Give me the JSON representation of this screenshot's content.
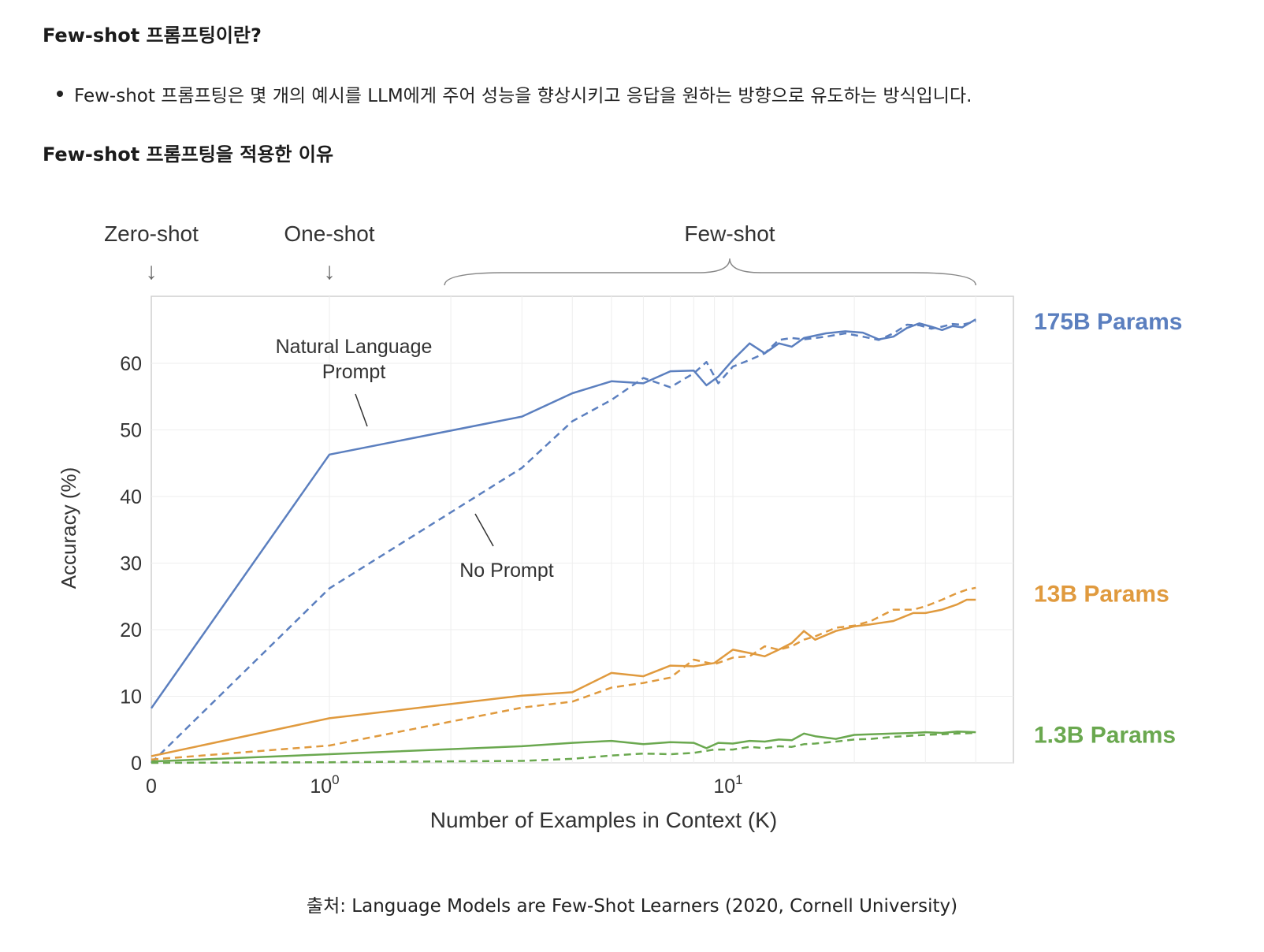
{
  "headings": {
    "what_is": "Few-shot 프롬프팅이란?",
    "why_applied": "Few-shot 프롬프팅을 적용한 이유"
  },
  "bullets": [
    "Few-shot 프롬프팅은 몇 개의 예시를 LLM에게 주어 성능을 향상시키고 응답을 원하는 방향으로 유도하는 방식입니다."
  ],
  "caption": "출처: Language Models are Few-Shot Learners (2020, Cornell University)",
  "chart_data": {
    "type": "line",
    "xlabel": "Number of Examples in Context  (K)",
    "ylabel": "Accuracy (%)",
    "x_scale": "symlog",
    "xlim": [
      0,
      40
    ],
    "ylim": [
      0,
      70
    ],
    "y_ticks": [
      0,
      10,
      20,
      30,
      40,
      50,
      60
    ],
    "x_ticks": [
      {
        "value": 0,
        "label": "0",
        "sup": ""
      },
      {
        "value": 1,
        "label": "10",
        "sup": "0"
      },
      {
        "value": 10,
        "label": "10",
        "sup": "1"
      }
    ],
    "grid": true,
    "regions": [
      {
        "label": "Zero-shot",
        "value": 0
      },
      {
        "label": "One-shot",
        "value": 1
      },
      {
        "label": "Few-shot",
        "range": [
          2,
          40
        ]
      }
    ],
    "annotations": [
      {
        "text_lines": [
          "Natural Language",
          "Prompt"
        ],
        "target_series": "175B-natural"
      },
      {
        "text_lines": [
          "No Prompt"
        ],
        "target_series": "175B-noprompt"
      }
    ],
    "series": [
      {
        "model": "175B Params",
        "prompt": "natural",
        "style": "solid",
        "color": "#5b7fbf",
        "points": [
          [
            0,
            8.2
          ],
          [
            1,
            46.3
          ],
          [
            3,
            52
          ],
          [
            4,
            55.5
          ],
          [
            5,
            57.3
          ],
          [
            6,
            57
          ],
          [
            7,
            58.8
          ],
          [
            8,
            58.9
          ],
          [
            8.6,
            56.7
          ],
          [
            9.2,
            58
          ],
          [
            10,
            60.5
          ],
          [
            11,
            63
          ],
          [
            12,
            61.5
          ],
          [
            13,
            63
          ],
          [
            14,
            62.5
          ],
          [
            15,
            63.8
          ],
          [
            17,
            64.5
          ],
          [
            19,
            64.8
          ],
          [
            21,
            64.6
          ],
          [
            23,
            63.6
          ],
          [
            25,
            64
          ],
          [
            27,
            65.3
          ],
          [
            29,
            66
          ],
          [
            31,
            65.5
          ],
          [
            33,
            65
          ],
          [
            35,
            65.6
          ],
          [
            37,
            65.4
          ],
          [
            40,
            66.6
          ]
        ]
      },
      {
        "model": "175B Params",
        "prompt": "none",
        "style": "dashed",
        "color": "#5b7fbf",
        "points": [
          [
            0,
            0
          ],
          [
            1,
            26.2
          ],
          [
            3,
            44.3
          ],
          [
            4,
            51.3
          ],
          [
            5,
            54.5
          ],
          [
            6,
            57.8
          ],
          [
            7,
            56.4
          ],
          [
            8,
            58.5
          ],
          [
            8.6,
            60.2
          ],
          [
            9.2,
            57
          ],
          [
            10,
            59.5
          ],
          [
            11,
            60.5
          ],
          [
            12,
            61.5
          ],
          [
            13,
            63.5
          ],
          [
            14,
            63.8
          ],
          [
            15,
            63.6
          ],
          [
            17,
            64
          ],
          [
            19,
            64.5
          ],
          [
            21,
            64
          ],
          [
            23,
            63.5
          ],
          [
            25,
            64.5
          ],
          [
            27,
            65.8
          ],
          [
            29,
            65.7
          ],
          [
            31,
            65.2
          ],
          [
            33,
            65.5
          ],
          [
            35,
            65.9
          ],
          [
            37,
            65.8
          ],
          [
            40,
            66.3
          ]
        ]
      },
      {
        "model": "13B Params",
        "prompt": "natural",
        "style": "solid",
        "color": "#e09a3e",
        "points": [
          [
            0,
            1
          ],
          [
            1,
            6.7
          ],
          [
            3,
            10.1
          ],
          [
            4,
            10.6
          ],
          [
            5,
            13.5
          ],
          [
            6,
            13
          ],
          [
            7,
            14.6
          ],
          [
            8,
            14.5
          ],
          [
            9,
            15
          ],
          [
            10,
            17
          ],
          [
            11,
            16.5
          ],
          [
            12,
            16
          ],
          [
            13,
            17
          ],
          [
            14,
            18
          ],
          [
            15,
            19.8
          ],
          [
            16,
            18.5
          ],
          [
            18,
            19.8
          ],
          [
            20,
            20.5
          ],
          [
            22,
            20.8
          ],
          [
            25,
            21.3
          ],
          [
            28,
            22.5
          ],
          [
            30,
            22.5
          ],
          [
            33,
            23
          ],
          [
            36,
            23.8
          ],
          [
            38,
            24.5
          ],
          [
            40,
            24.5
          ]
        ]
      },
      {
        "model": "13B Params",
        "prompt": "none",
        "style": "dashed",
        "color": "#e09a3e",
        "points": [
          [
            0,
            0.5
          ],
          [
            1,
            2.6
          ],
          [
            3,
            8.3
          ],
          [
            4,
            9.2
          ],
          [
            5,
            11.3
          ],
          [
            6,
            12
          ],
          [
            7,
            12.8
          ],
          [
            8,
            15.5
          ],
          [
            9,
            14.8
          ],
          [
            10,
            15.8
          ],
          [
            11,
            16
          ],
          [
            12,
            17.5
          ],
          [
            13,
            17
          ],
          [
            14,
            17.5
          ],
          [
            15,
            18.5
          ],
          [
            16,
            19
          ],
          [
            18,
            20.3
          ],
          [
            20,
            20.6
          ],
          [
            22,
            21.3
          ],
          [
            25,
            23
          ],
          [
            28,
            23
          ],
          [
            30,
            23.5
          ],
          [
            33,
            24.5
          ],
          [
            36,
            25.5
          ],
          [
            38,
            26
          ],
          [
            40,
            26.3
          ]
        ]
      },
      {
        "model": "1.3B Params",
        "prompt": "natural",
        "style": "solid",
        "color": "#6aa84f",
        "points": [
          [
            0,
            0.2
          ],
          [
            1,
            1.3
          ],
          [
            3,
            2.5
          ],
          [
            4,
            3
          ],
          [
            5,
            3.3
          ],
          [
            6,
            2.8
          ],
          [
            7,
            3.1
          ],
          [
            8,
            3
          ],
          [
            8.6,
            2.2
          ],
          [
            9.2,
            3
          ],
          [
            10,
            2.9
          ],
          [
            11,
            3.3
          ],
          [
            12,
            3.2
          ],
          [
            13,
            3.5
          ],
          [
            14,
            3.4
          ],
          [
            15,
            4.4
          ],
          [
            16,
            4
          ],
          [
            18,
            3.6
          ],
          [
            20,
            4.2
          ],
          [
            22,
            4.3
          ],
          [
            25,
            4.4
          ],
          [
            28,
            4.5
          ],
          [
            30,
            4.6
          ],
          [
            33,
            4.5
          ],
          [
            36,
            4.7
          ],
          [
            40,
            4.6
          ]
        ]
      },
      {
        "model": "1.3B Params",
        "prompt": "none",
        "style": "dashed",
        "color": "#6aa84f",
        "points": [
          [
            0,
            0
          ],
          [
            1,
            0.1
          ],
          [
            3,
            0.3
          ],
          [
            4,
            0.6
          ],
          [
            5,
            1.1
          ],
          [
            6,
            1.4
          ],
          [
            7,
            1.3
          ],
          [
            8,
            1.5
          ],
          [
            9,
            2
          ],
          [
            10,
            2
          ],
          [
            11,
            2.4
          ],
          [
            12,
            2.2
          ],
          [
            13,
            2.5
          ],
          [
            14,
            2.4
          ],
          [
            15,
            2.8
          ],
          [
            16,
            2.9
          ],
          [
            18,
            3.2
          ],
          [
            20,
            3.5
          ],
          [
            22,
            3.6
          ],
          [
            25,
            3.9
          ],
          [
            28,
            4.1
          ],
          [
            30,
            4.2
          ],
          [
            33,
            4.3
          ],
          [
            36,
            4.4
          ],
          [
            40,
            4.5
          ]
        ]
      }
    ],
    "legend": [
      {
        "label": "175B Params",
        "color": "#5b7fbf",
        "at_value": 66.4
      },
      {
        "label": "13B Params",
        "color": "#e09a3e",
        "at_value": 25.5
      },
      {
        "label": "1.3B Params",
        "color": "#6aa84f",
        "at_value": 4.3
      }
    ]
  }
}
